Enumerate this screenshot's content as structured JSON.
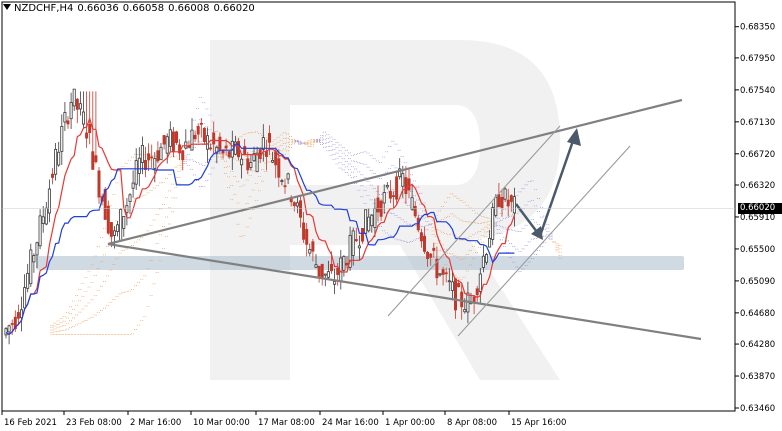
{
  "header": {
    "symbol": "NZDCHF,H4",
    "open": "0.66036",
    "high": "0.66058",
    "low": "0.66008",
    "close": "0.66020"
  },
  "current_price_label": "0.66020",
  "chart_data": {
    "type": "candlestick",
    "symbol": "NZDCHF",
    "timeframe": "H4",
    "x_ticks": [
      "16 Feb 2021",
      "23 Feb 08:00",
      "2 Mar 16:00",
      "10 Mar 00:00",
      "17 Mar 08:00",
      "24 Mar 16:00",
      "1 Apr 00:00",
      "8 Apr 08:00",
      "15 Apr 16:00"
    ],
    "y_ticks": [
      "0.68350",
      "0.67950",
      "0.67540",
      "0.67130",
      "0.66720",
      "0.66320",
      "0.65910",
      "0.65500",
      "0.65090",
      "0.64680",
      "0.64280",
      "0.63870",
      "0.63460"
    ],
    "y_range": [
      0.6346,
      0.6855
    ],
    "last_close": 0.6602,
    "close_path": [
      0.644,
      0.6465,
      0.653,
      0.66,
      0.668,
      0.6745,
      0.671,
      0.663,
      0.656,
      0.661,
      0.6665,
      0.667,
      0.669,
      0.668,
      0.67,
      0.6685,
      0.667,
      0.6675,
      0.666,
      0.669,
      0.6655,
      0.662,
      0.656,
      0.652,
      0.651,
      0.6545,
      0.6575,
      0.66,
      0.662,
      0.664,
      0.659,
      0.654,
      0.651,
      0.6485,
      0.648,
      0.655,
      0.662,
      0.6602
    ],
    "colors": {
      "bull_candle": "#3a3a3a",
      "bear_candle": "#c0392b",
      "tenkan": "#e53935",
      "kijun": "#1e3fd8",
      "cloud_bull": "#e8a060",
      "cloud_bear": "#9b8fd0",
      "support_band": "#a9bccc",
      "trendline": "#808080",
      "forecast_arrow": "#4a5a6a"
    }
  }
}
